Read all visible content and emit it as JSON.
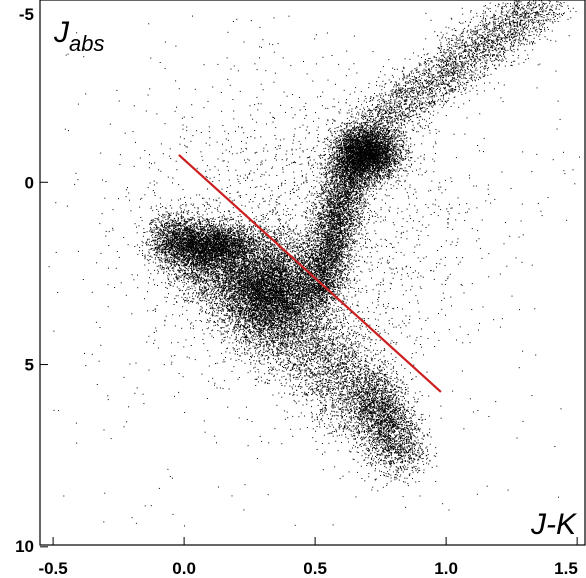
{
  "chart_data": {
    "type": "scatter",
    "title": "",
    "xlabel": "J-K",
    "ylabel": {
      "main": "J",
      "sub": "abs"
    },
    "xlim": [
      -0.55,
      1.53
    ],
    "ylim": [
      -5.0,
      9.95
    ],
    "y_inverted": true,
    "grid": false,
    "x_ticks": [
      {
        "value": -0.5,
        "label": "-0.5"
      },
      {
        "value": 0.0,
        "label": "0.0"
      },
      {
        "value": 0.5,
        "label": "0.5"
      },
      {
        "value": 1.0,
        "label": "1.0"
      },
      {
        "value": 1.5,
        "label": "1.5"
      }
    ],
    "y_ticks": [
      {
        "value": -5,
        "label": "-5"
      },
      {
        "value": 0,
        "label": "0"
      },
      {
        "value": 5,
        "label": "5"
      },
      {
        "value": 10,
        "label": "10"
      }
    ],
    "point_color": "#000000",
    "line_color": "#cc1f1f",
    "divider_line": {
      "x": [
        -0.02,
        0.98
      ],
      "y": [
        -0.75,
        5.75
      ]
    },
    "distribution": {
      "dwarf_branch": {
        "x_range": [
          -0.05,
          0.95
        ],
        "y_range": [
          1.4,
          7.5
        ],
        "peak": {
          "x": 0.33,
          "y": 3.0
        }
      },
      "giant_branch": {
        "x_range": [
          0.45,
          1.5
        ],
        "y_range": [
          -5.0,
          3.5
        ],
        "clump": {
          "x": 0.68,
          "y": -0.8
        }
      }
    }
  }
}
